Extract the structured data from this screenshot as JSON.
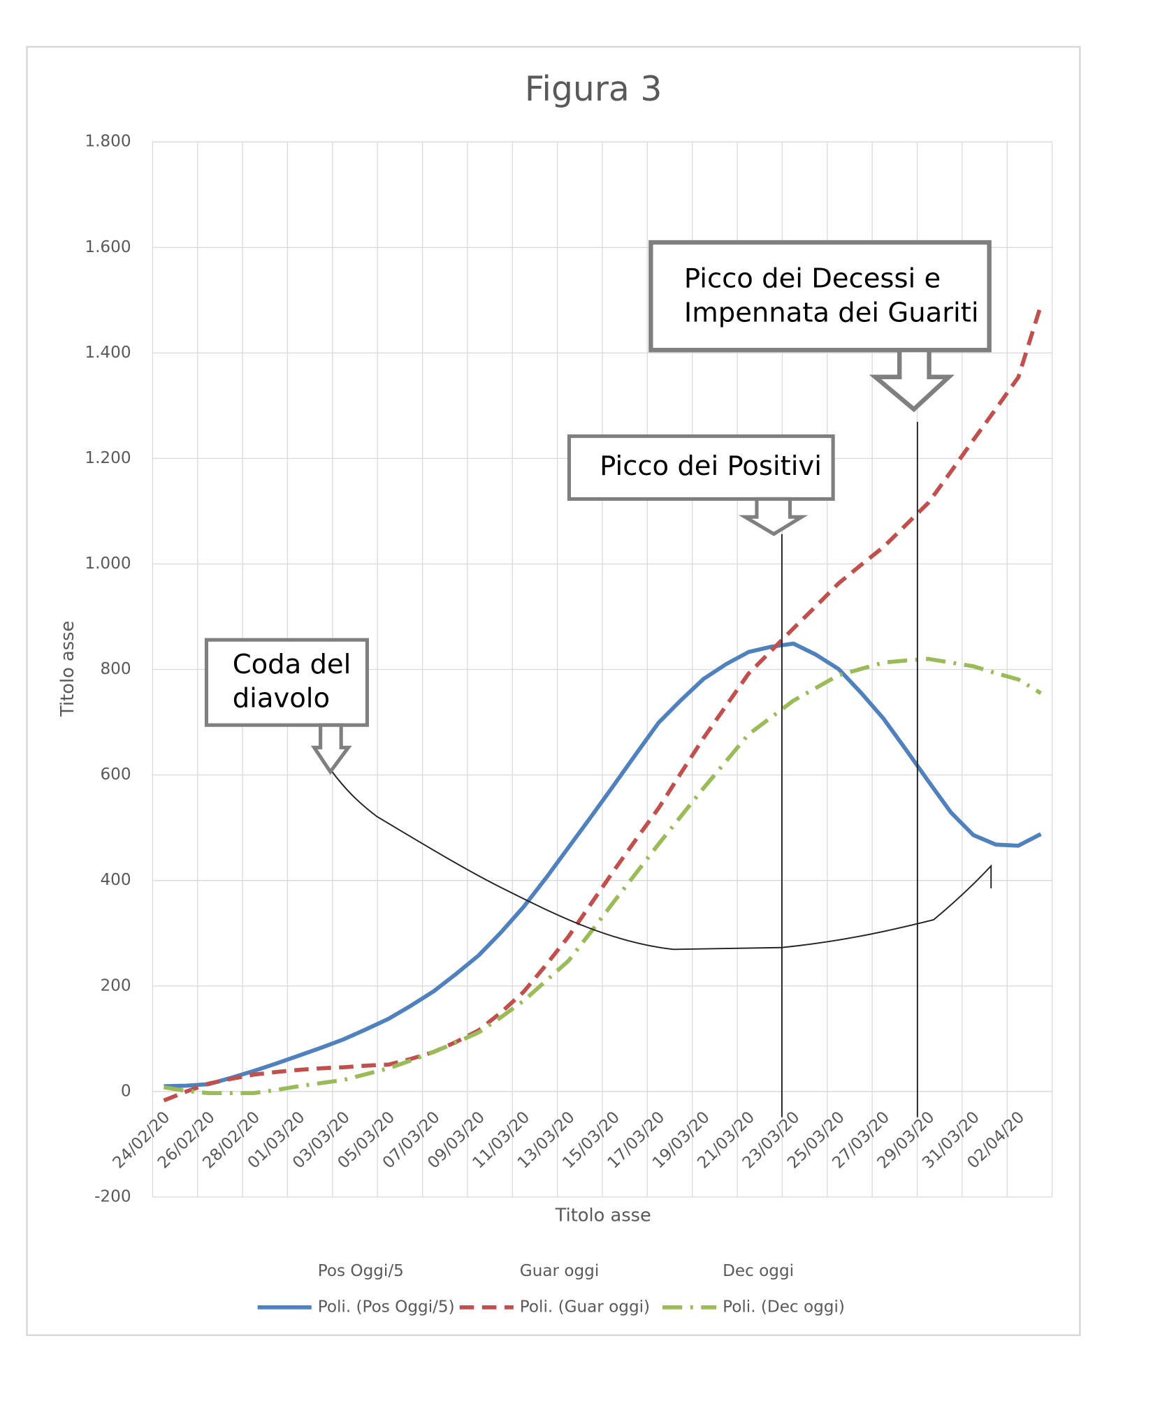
{
  "chart_data": {
    "type": "line",
    "title": "Figura 3",
    "x_label": "Titolo asse",
    "y_label": "Titolo asse",
    "categories": [
      "24/02/20",
      null,
      "26/02/20",
      null,
      "28/02/20",
      null,
      "01/03/20",
      null,
      "03/03/20",
      null,
      "05/03/20",
      null,
      "07/03/20",
      null,
      "09/03/20",
      null,
      "11/03/20",
      null,
      "13/03/20",
      null,
      "15/03/20",
      null,
      "17/03/20",
      null,
      "19/03/20",
      null,
      "21/03/20",
      null,
      "23/03/20",
      null,
      "25/03/20",
      null,
      "27/03/20",
      null,
      "29/03/20",
      null,
      "31/03/20",
      null,
      "02/04/20",
      null
    ],
    "ylim": [
      -200,
      1800
    ],
    "yticks": [
      -200,
      0,
      200,
      400,
      600,
      800,
      {
        "value": 1000,
        "label": "1.000"
      },
      {
        "value": 1200,
        "label": "1.200"
      },
      {
        "value": 1400,
        "label": "1.400"
      },
      {
        "value": 1600,
        "label": "1.600"
      },
      {
        "value": 1800,
        "label": "1.800"
      }
    ],
    "grid": true,
    "hidden_series": [
      "Pos Oggi/5",
      "Guar oggi",
      "Dec oggi"
    ],
    "series": [
      {
        "name": "Poli. (Pos Oggi/5)",
        "color": "#4f81bd",
        "dash": "solid",
        "values": [
          10,
          11,
          14,
          26,
          39,
          53,
          68,
          83,
          99,
          118,
          138,
          163,
          190,
          223,
          258,
          302,
          350,
          405,
          463,
          521,
          580,
          640,
          699,
          742,
          782,
          810,
          833,
          843,
          849,
          828,
          801,
          756,
          707,
          648,
          588,
          529,
          486,
          468,
          466,
          488
        ]
      },
      {
        "name": "Poli. (Guar oggi)",
        "color": "#c0504d",
        "dash": "dash",
        "values": [
          -17,
          0,
          15,
          24,
          32,
          37,
          41,
          44,
          46,
          49,
          51,
          62,
          75,
          94,
          116,
          150,
          189,
          240,
          294,
          356,
          418,
          478,
          537,
          604,
          670,
          731,
          792,
          835,
          878,
          920,
          963,
          998,
          1032,
          1074,
          1116,
          1175,
          1235,
          1294,
          1354,
          1490
        ]
      },
      {
        "name": "Poli. (Dec oggi)",
        "color": "#9bbb59",
        "dash": "dashdot",
        "values": [
          8,
          1,
          -3,
          -3,
          -3,
          3,
          10,
          16,
          22,
          33,
          44,
          59,
          75,
          93,
          112,
          141,
          172,
          210,
          248,
          303,
          359,
          414,
          469,
          522,
          575,
          626,
          677,
          709,
          741,
          765,
          789,
          801,
          813,
          817,
          820,
          813,
          806,
          793,
          781,
          755
        ]
      }
    ],
    "annotations": [
      {
        "lines": [
          "Coda del",
          "diavolo"
        ]
      },
      {
        "lines": [
          "Picco dei Positivi"
        ]
      },
      {
        "lines": [
          "Picco dei Decessi e",
          "Impennata dei Guariti"
        ]
      }
    ]
  }
}
